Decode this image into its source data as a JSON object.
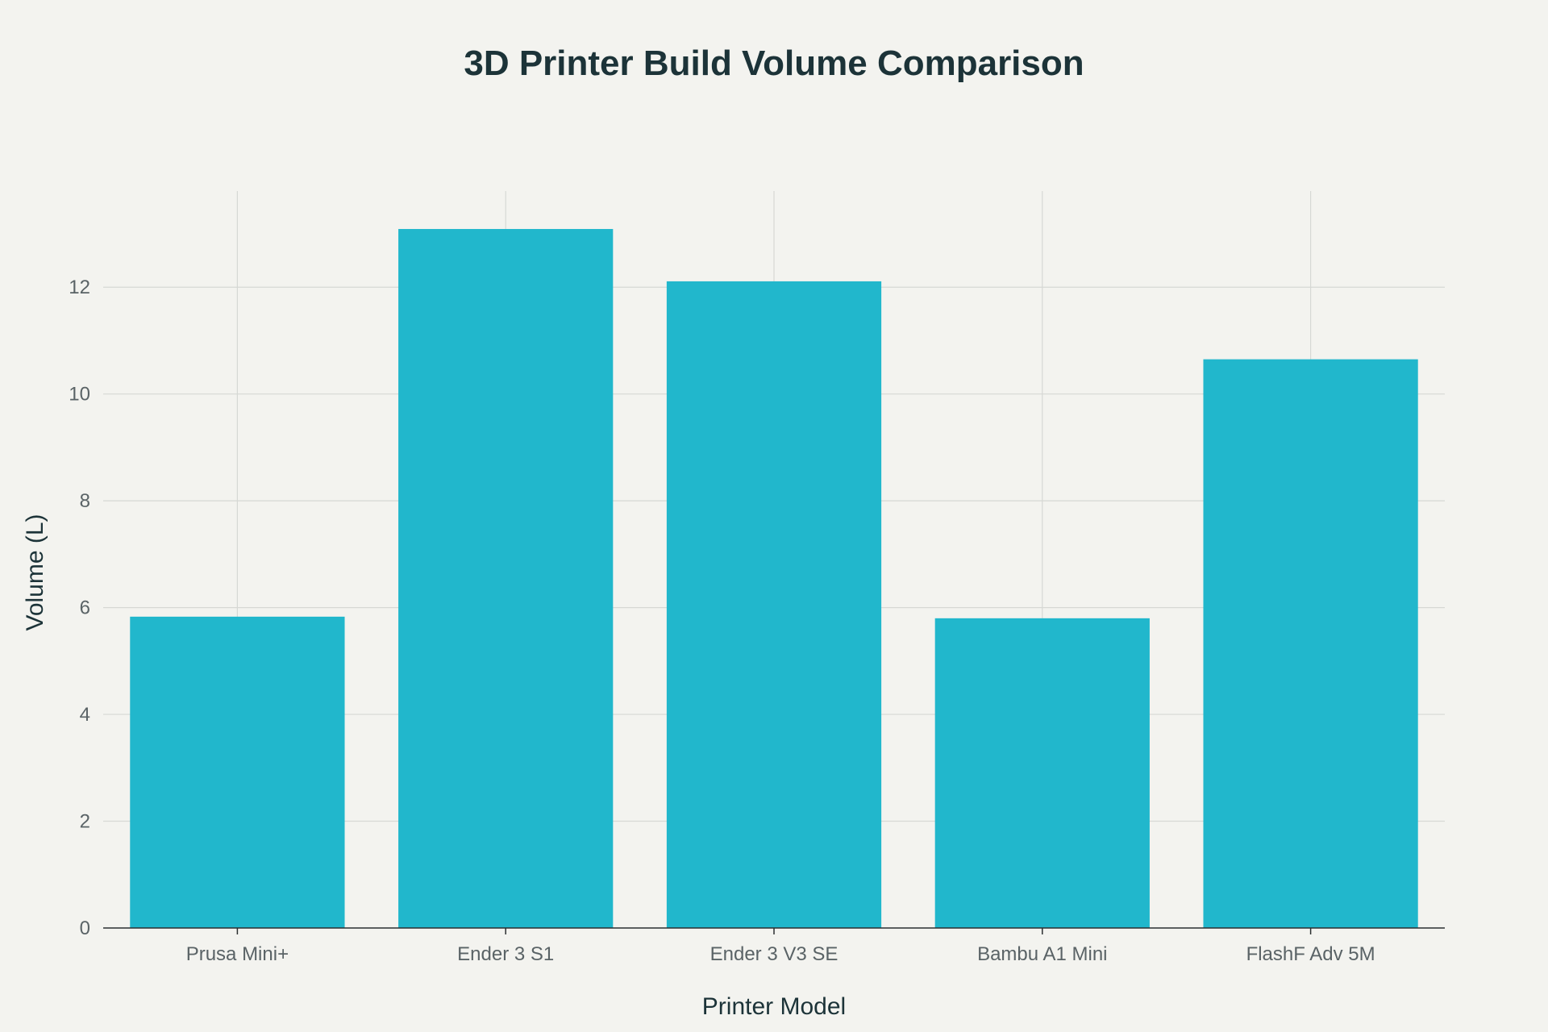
{
  "chart_data": {
    "type": "bar",
    "title": "3D Printer Build Volume Comparison",
    "xlabel": "Printer Model",
    "ylabel": "Volume (L)",
    "categories": [
      "Prusa Mini+",
      "Ender 3 S1",
      "Ender 3 V3 SE",
      "Bambu A1 Mini",
      "FlashF Adv 5M"
    ],
    "values": [
      5.83,
      13.09,
      12.11,
      5.8,
      10.65
    ],
    "ylim": [
      0,
      13.8
    ],
    "yticks": [
      0,
      2,
      4,
      6,
      8,
      10,
      12
    ],
    "grid": true,
    "legend": "none",
    "colors": {
      "bar": "#21b7cc",
      "background": "#f3f3ef",
      "grid": "#d6d8d4",
      "axis": "#2b2f30",
      "title": "#1c3338"
    }
  }
}
